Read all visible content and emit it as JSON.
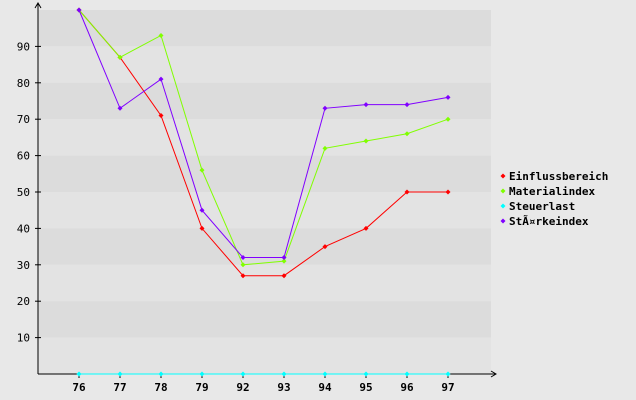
{
  "chart_data": {
    "type": "line",
    "title": "",
    "xlabel": "",
    "ylabel": "",
    "categories": [
      "76",
      "77",
      "78",
      "79",
      "92",
      "93",
      "94",
      "95",
      "96",
      "97"
    ],
    "ylim": [
      0,
      100
    ],
    "yticks": [
      10,
      20,
      30,
      40,
      50,
      60,
      70,
      80,
      90
    ],
    "grid": "alternating horizontal bands",
    "legend_position": "right",
    "series": [
      {
        "name": "Einflussbereich",
        "color": "#ff0000",
        "values": [
          100,
          87,
          71,
          40,
          27,
          27,
          35,
          40,
          50,
          50
        ]
      },
      {
        "name": "Materialindex",
        "color": "#80ff00",
        "values": [
          100,
          87,
          93,
          56,
          30,
          31,
          62,
          64,
          66,
          70
        ]
      },
      {
        "name": "Steuerlast",
        "color": "#00ffff",
        "values": [
          0,
          0,
          0,
          0,
          0,
          0,
          0,
          0,
          0,
          0
        ]
      },
      {
        "name": "StÃ¤rkeindex",
        "color": "#8000ff",
        "values": [
          100,
          73,
          81,
          45,
          32,
          32,
          73,
          74,
          74,
          76
        ]
      }
    ]
  }
}
